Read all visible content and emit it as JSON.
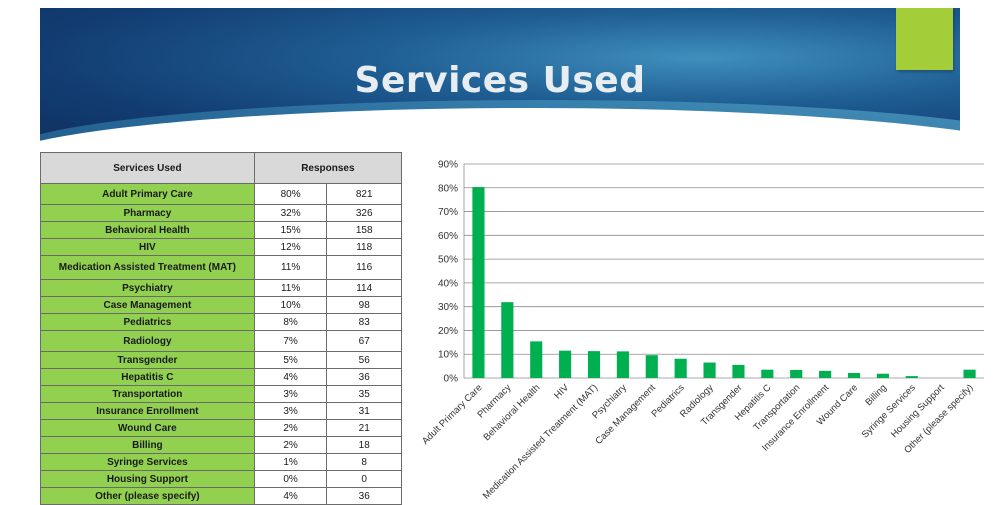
{
  "slide": {
    "title": "Services Used",
    "accent_color": "#a3cd39",
    "banner_color": "#1f5e93"
  },
  "table": {
    "headers": [
      "Services Used",
      "Responses"
    ],
    "rows": [
      {
        "service": "Adult Primary Care",
        "percent": "80%",
        "count": "821"
      },
      {
        "service": "Pharmacy",
        "percent": "32%",
        "count": "326"
      },
      {
        "service": "Behavioral Health",
        "percent": "15%",
        "count": "158"
      },
      {
        "service": "HIV",
        "percent": "12%",
        "count": "118"
      },
      {
        "service": "Medication Assisted Treatment (MAT)",
        "percent": "11%",
        "count": "116"
      },
      {
        "service": "Psychiatry",
        "percent": "11%",
        "count": "114"
      },
      {
        "service": "Case Management",
        "percent": "10%",
        "count": "98"
      },
      {
        "service": "Pediatrics",
        "percent": "8%",
        "count": "83"
      },
      {
        "service": "Radiology",
        "percent": "7%",
        "count": "67"
      },
      {
        "service": "Transgender",
        "percent": "5%",
        "count": "56"
      },
      {
        "service": "Hepatitis C",
        "percent": "4%",
        "count": "36"
      },
      {
        "service": "Transportation",
        "percent": "3%",
        "count": "35"
      },
      {
        "service": "Insurance Enrollment",
        "percent": "3%",
        "count": "31"
      },
      {
        "service": "Wound Care",
        "percent": "2%",
        "count": "21"
      },
      {
        "service": "Billing",
        "percent": "2%",
        "count": "18"
      },
      {
        "service": "Syringe Services",
        "percent": "1%",
        "count": "8"
      },
      {
        "service": "Housing  Support",
        "percent": "0%",
        "count": "0"
      },
      {
        "service": "Other (please specify)",
        "percent": "4%",
        "count": "36"
      }
    ]
  },
  "chart_data": {
    "type": "bar",
    "categories": [
      "Adult Primary Care",
      "Pharmacy",
      "Behavioral Health",
      "HIV",
      "Medication Assisted Treatment (MAT)",
      "Psychiatry",
      "Case Management",
      "Pediatrics",
      "Radiology",
      "Transgender",
      "Hepatitis C",
      "Transportation",
      "Insurance Enrollment",
      "Wound Care",
      "Billing",
      "Syringe Services",
      "Housing Support",
      "Other (please specify)"
    ],
    "values": [
      80.3,
      31.9,
      15.4,
      11.5,
      11.3,
      11.2,
      9.6,
      8.1,
      6.5,
      5.5,
      3.5,
      3.4,
      3.0,
      2.1,
      1.8,
      0.8,
      0.0,
      3.5
    ],
    "title": "",
    "xlabel": "",
    "ylabel": "",
    "ylim": [
      0,
      90
    ],
    "yticks": [
      0,
      10,
      20,
      30,
      40,
      50,
      60,
      70,
      80,
      90
    ],
    "ytick_labels": [
      "0%",
      "10%",
      "20%",
      "30%",
      "40%",
      "50%",
      "60%",
      "70%",
      "80%",
      "90%"
    ],
    "grid": true,
    "bar_color": "#00b050"
  }
}
